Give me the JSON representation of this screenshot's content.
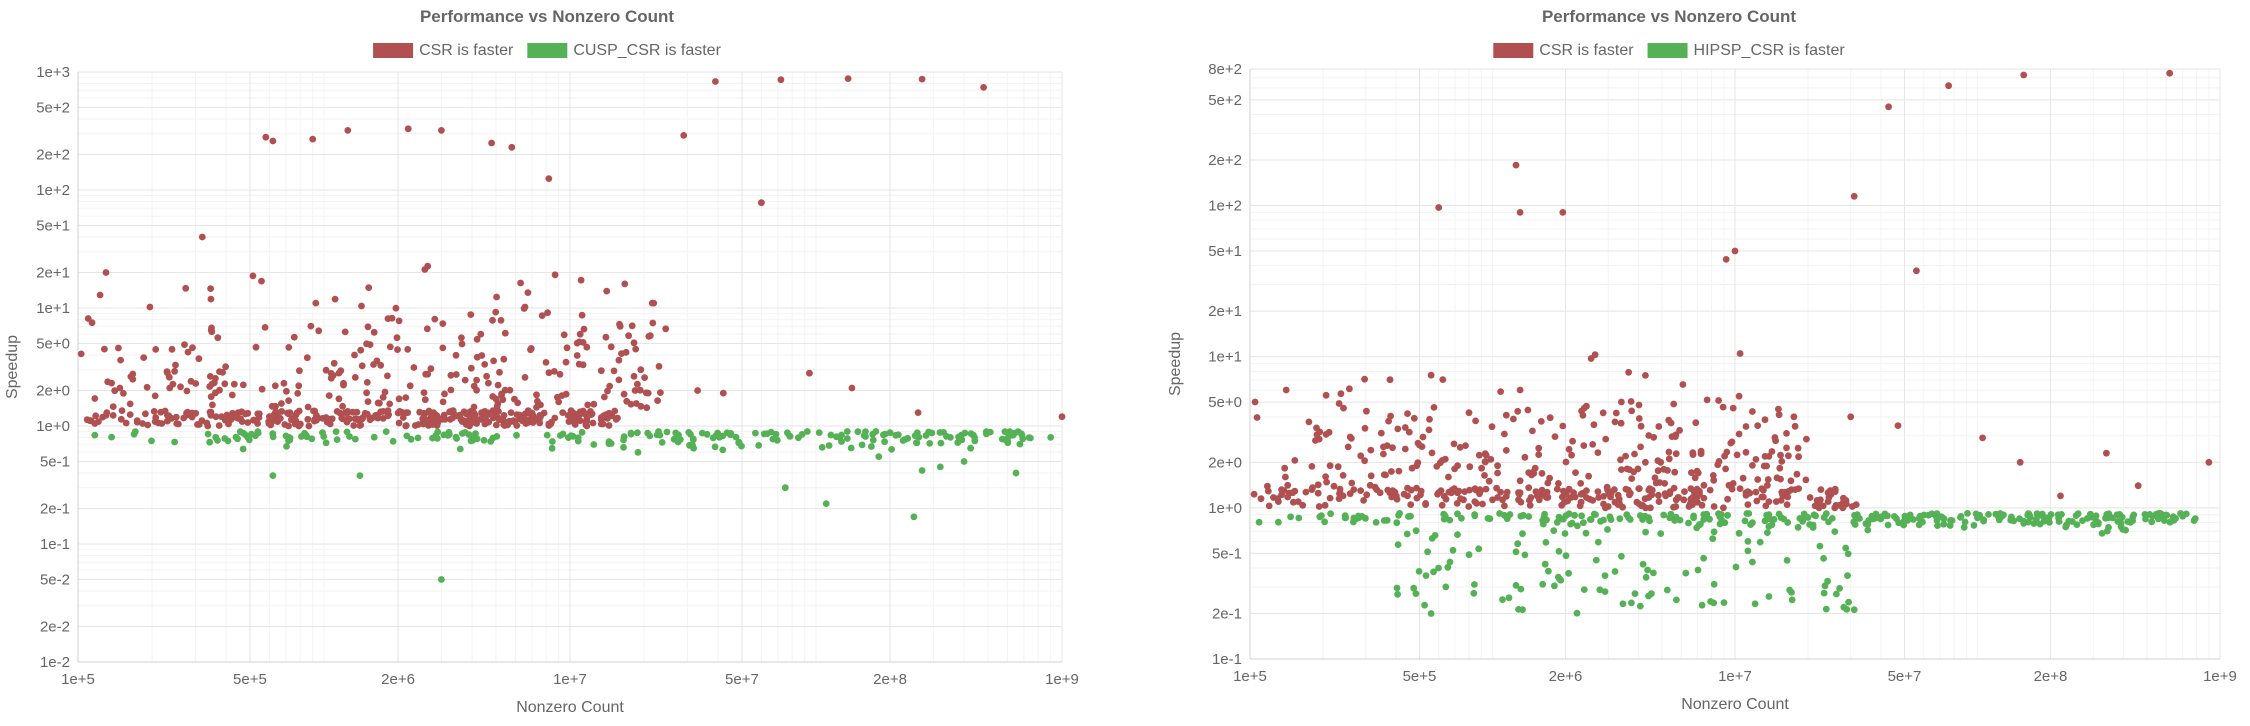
{
  "colors": {
    "csr": "#b05050",
    "other": "#55b155",
    "text": "#666666"
  },
  "chart_data": [
    {
      "type": "scatter",
      "title": "Performance vs Nonzero Count",
      "xlabel": "Nonzero Count",
      "ylabel": "Speedup",
      "x_scale": "log",
      "y_scale": "log",
      "xlim": [
        100000,
        1000000000
      ],
      "ylim": [
        0.01,
        1000
      ],
      "x_ticks": [
        "1e+5",
        "5e+5",
        "2e+6",
        "1e+7",
        "5e+7",
        "2e+8",
        "1e+9"
      ],
      "x_tick_values": [
        100000,
        500000,
        2000000,
        10000000,
        50000000,
        200000000,
        1000000000
      ],
      "y_ticks": [
        "1e+3",
        "5e+2",
        "2e+2",
        "1e+2",
        "5e+1",
        "2e+1",
        "1e+1",
        "5e+0",
        "2e+0",
        "1e+0",
        "5e-1",
        "2e-1",
        "1e-1",
        "5e-2",
        "2e-2",
        "1e-2"
      ],
      "y_tick_values": [
        1000,
        500,
        200,
        100,
        50,
        20,
        10,
        5,
        2,
        1,
        0.5,
        0.2,
        0.1,
        0.05,
        0.02,
        0.01
      ],
      "grid": true,
      "legend_position": "top-center",
      "series": [
        {
          "name": "CSR is faster",
          "color": "#b05050",
          "points": []
        },
        {
          "name": "CUSP_CSR is faster",
          "color": "#55b155",
          "points": []
        }
      ]
    },
    {
      "type": "scatter",
      "title": "Performance vs Nonzero Count",
      "xlabel": "Nonzero Count",
      "ylabel": "Speedup",
      "x_scale": "log",
      "y_scale": "log",
      "xlim": [
        100000,
        1000000000
      ],
      "ylim": [
        0.1,
        800
      ],
      "x_ticks": [
        "1e+5",
        "5e+5",
        "2e+6",
        "1e+7",
        "5e+7",
        "2e+8",
        "1e+9"
      ],
      "x_tick_values": [
        100000,
        500000,
        2000000,
        10000000,
        50000000,
        200000000,
        1000000000
      ],
      "y_ticks": [
        "8e+2",
        "5e+2",
        "2e+2",
        "1e+2",
        "5e+1",
        "2e+1",
        "1e+1",
        "5e+0",
        "2e+0",
        "1e+0",
        "5e-1",
        "2e-1",
        "1e-1"
      ],
      "y_tick_values": [
        800,
        500,
        200,
        100,
        50,
        20,
        10,
        5,
        2,
        1,
        0.5,
        0.2,
        0.1
      ],
      "grid": true,
      "legend_position": "top-center",
      "series": [
        {
          "name": "CSR is faster",
          "color": "#b05050",
          "points": []
        },
        {
          "name": "HIPSP_CSR is faster",
          "color": "#55b155",
          "points": []
        }
      ]
    }
  ]
}
